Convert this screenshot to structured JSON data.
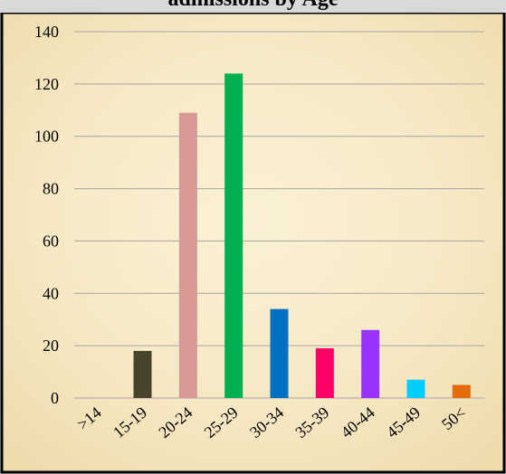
{
  "chart_data": {
    "type": "bar",
    "title": "admissions by Age",
    "xlabel": "",
    "ylabel": "",
    "categories": [
      ">14",
      "15-19",
      "20-24",
      "25-29",
      "30-34",
      "35-39",
      "40-44",
      "45-49",
      "50<"
    ],
    "values": [
      0,
      18,
      109,
      124,
      34,
      19,
      26,
      7,
      5
    ],
    "colors": [
      "#4a4a4a",
      "#4a432c",
      "#d69996",
      "#00b050",
      "#0070c0",
      "#ff0066",
      "#9933ff",
      "#00ccff",
      "#e26b0a"
    ],
    "ylim": [
      0,
      140
    ],
    "yticks": [
      0,
      20,
      40,
      60,
      80,
      100,
      120,
      140
    ],
    "grid": true,
    "legend": "none"
  },
  "theme": {
    "panel_background": "#f7ebc9",
    "panel_border": "#000000",
    "gridline": "#a6a6a6",
    "text": "#000000"
  }
}
